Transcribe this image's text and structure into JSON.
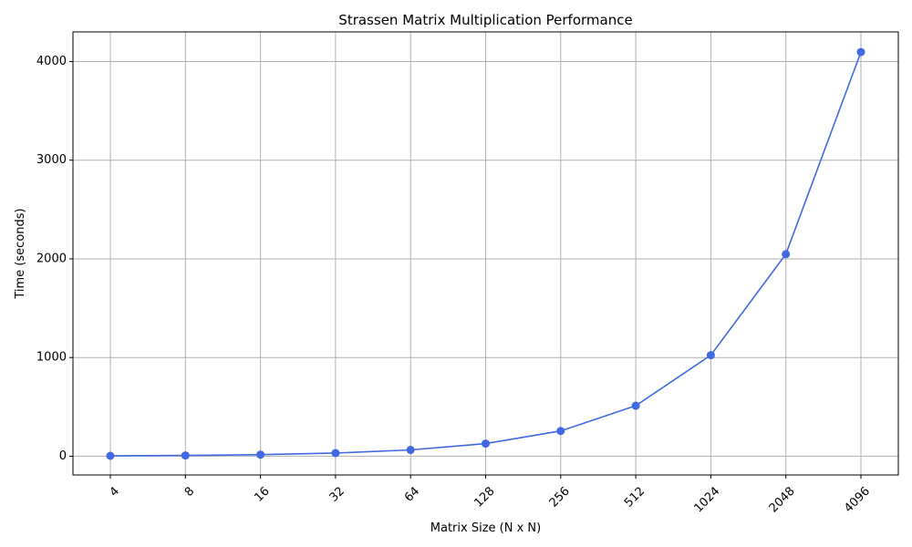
{
  "chart_data": {
    "type": "line",
    "title": "Strassen Matrix Multiplication Performance",
    "xlabel": "Matrix Size (N x N)",
    "ylabel": "Time (seconds)",
    "categories": [
      "4",
      "8",
      "16",
      "32",
      "64",
      "128",
      "256",
      "512",
      "1024",
      "2048",
      "4096"
    ],
    "series": [
      {
        "values": [
          4,
          8,
          16,
          32,
          64,
          128,
          256,
          512,
          1024,
          2048,
          4096
        ],
        "color": "#4169e1"
      }
    ],
    "ylim": [
      -190,
      4300
    ],
    "yticks": [
      0,
      1000,
      2000,
      3000,
      4000
    ],
    "grid": true,
    "legend": "none"
  }
}
